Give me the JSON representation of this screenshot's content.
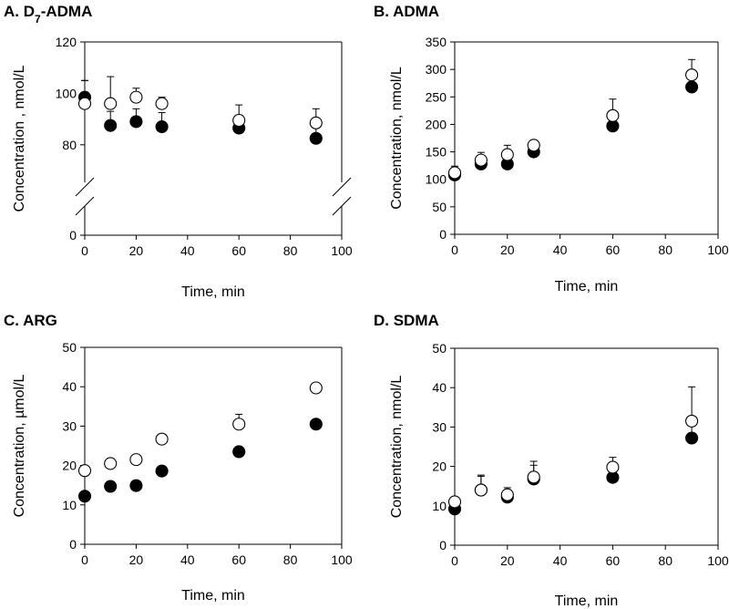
{
  "chart_data": [
    {
      "panel": "A",
      "type": "scatter",
      "title_main": "A. D",
      "title_sub": "7",
      "title_rest": "-ADMA",
      "xlabel": "Time, min",
      "ylabel": "Concentration , nmol/L",
      "xlim": [
        0,
        100
      ],
      "xticks": [
        0,
        20,
        40,
        60,
        80,
        100
      ],
      "ylim": [
        0,
        120
      ],
      "yticks": [
        0,
        80,
        100,
        120
      ],
      "broken_axis": {
        "from": 0,
        "to": 70
      },
      "series": [
        {
          "name": "filled",
          "marker": "filled-circle",
          "x": [
            0,
            10,
            20,
            30,
            60,
            90
          ],
          "y": [
            98.5,
            87.5,
            89,
            87,
            86.5,
            82.5
          ],
          "err": [
            6.5,
            5.5,
            5,
            5.5,
            5,
            5
          ]
        },
        {
          "name": "open",
          "marker": "open-circle",
          "x": [
            0,
            10,
            20,
            30,
            60,
            90
          ],
          "y": [
            96,
            96,
            98.5,
            96,
            89.5,
            88.5
          ],
          "err": [
            9,
            10.5,
            3.5,
            2.5,
            6,
            5.5
          ]
        }
      ]
    },
    {
      "panel": "B",
      "type": "scatter",
      "title_main": "B. ADMA",
      "title_sub": "",
      "title_rest": "",
      "xlabel": "Time, min",
      "ylabel": "Concentration, nmol/L",
      "xlim": [
        0,
        100
      ],
      "xticks": [
        0,
        20,
        40,
        60,
        80,
        100
      ],
      "ylim": [
        0,
        350
      ],
      "yticks": [
        0,
        50,
        100,
        150,
        200,
        250,
        300,
        350
      ],
      "series": [
        {
          "name": "filled",
          "marker": "filled-circle",
          "x": [
            0,
            10,
            20,
            30,
            60,
            90
          ],
          "y": [
            108,
            128,
            128,
            150,
            197,
            268
          ],
          "err": [
            5,
            8,
            8,
            18,
            22,
            23
          ]
        },
        {
          "name": "open",
          "marker": "open-circle",
          "x": [
            0,
            10,
            20,
            30,
            60,
            90
          ],
          "y": [
            112,
            135,
            145,
            162,
            216,
            290
          ],
          "err": [
            12,
            14,
            17,
            8,
            30,
            28
          ]
        }
      ]
    },
    {
      "panel": "C",
      "type": "scatter",
      "title_main": "C. ARG",
      "title_sub": "",
      "title_rest": "",
      "xlabel": "Time, min",
      "ylabel": "Concentration, µmol/L",
      "xlim": [
        0,
        100
      ],
      "xticks": [
        0,
        20,
        40,
        60,
        80,
        100
      ],
      "ylim": [
        0,
        50
      ],
      "yticks": [
        0,
        10,
        20,
        30,
        40,
        50
      ],
      "series": [
        {
          "name": "filled",
          "marker": "filled-circle",
          "x": [
            0,
            10,
            20,
            30,
            60,
            90
          ],
          "y": [
            12.2,
            14.7,
            14.9,
            18.6,
            23.5,
            30.5
          ],
          "err": [
            0.5,
            0.5,
            0.5,
            1.3,
            0.7,
            1.0
          ]
        },
        {
          "name": "open",
          "marker": "open-circle",
          "x": [
            0,
            10,
            20,
            30,
            60,
            90
          ],
          "y": [
            18.7,
            20.5,
            21.5,
            26.7,
            30.5,
            39.7
          ],
          "err": [
            0.5,
            0.5,
            0.5,
            0.8,
            2.5,
            0.5
          ]
        }
      ]
    },
    {
      "panel": "D",
      "type": "scatter",
      "title_main": "D. SDMA",
      "title_sub": "",
      "title_rest": "",
      "xlabel": "Time, min",
      "ylabel": "Concentration, nmol/L",
      "xlim": [
        0,
        100
      ],
      "xticks": [
        0,
        20,
        40,
        60,
        80,
        100
      ],
      "ylim": [
        0,
        50
      ],
      "yticks": [
        0,
        10,
        20,
        30,
        40,
        50
      ],
      "series": [
        {
          "name": "filled",
          "marker": "filled-circle",
          "x": [
            0,
            10,
            20,
            30,
            60,
            90
          ],
          "y": [
            9.2,
            14.0,
            12.2,
            16.8,
            17.2,
            27.2
          ],
          "err": [
            0.5,
            3.5,
            1.5,
            3.5,
            1.5,
            4.5
          ]
        },
        {
          "name": "open",
          "marker": "open-circle",
          "x": [
            0,
            10,
            20,
            30,
            60,
            90
          ],
          "y": [
            11.0,
            14.0,
            12.8,
            17.3,
            19.8,
            31.5
          ],
          "err": [
            0.5,
            3.8,
            1.8,
            4.0,
            2.5,
            8.7
          ]
        }
      ]
    }
  ]
}
